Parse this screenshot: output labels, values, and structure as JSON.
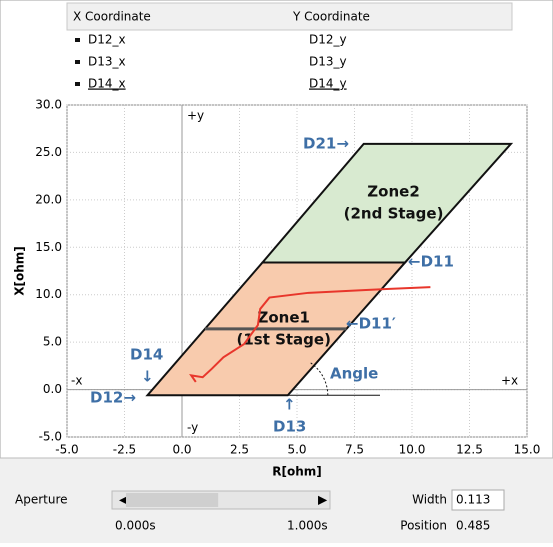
{
  "table": {
    "headers": [
      "X Coordinate",
      "Y Coordinate"
    ],
    "rows": [
      [
        "D12_x",
        "D12_y"
      ],
      [
        "D13_x",
        "D13_y"
      ],
      [
        "D14_x",
        "D14_y"
      ]
    ]
  },
  "chart_data": {
    "type": "line",
    "x_label": "R[ohm]",
    "y_label": "X[ohm]",
    "xlim": [
      -5,
      15
    ],
    "ylim": [
      -5,
      30
    ],
    "xticks": [
      {
        "value": -5,
        "label": "-5.0"
      },
      {
        "value": -2.5,
        "label": "-2.5"
      },
      {
        "value": 0,
        "label": "0.0"
      },
      {
        "value": 2.5,
        "label": "2.5"
      },
      {
        "value": 5,
        "label": "5.0"
      },
      {
        "value": 7.5,
        "label": "7.5"
      },
      {
        "value": 10,
        "label": "10.0"
      },
      {
        "value": 12.5,
        "label": "12.5"
      },
      {
        "value": 15,
        "label": "15.0"
      }
    ],
    "yticks": [
      {
        "value": -5,
        "label": "-5.0"
      },
      {
        "value": 0,
        "label": "0.0"
      },
      {
        "value": 5,
        "label": "5.0"
      },
      {
        "value": 10,
        "label": "10.0"
      },
      {
        "value": 15,
        "label": "15.0"
      },
      {
        "value": 20,
        "label": "20.0"
      },
      {
        "value": 25,
        "label": "25.0"
      },
      {
        "value": 30,
        "label": "30.0"
      }
    ],
    "grid": true,
    "zones": [
      {
        "name": [
          "Zone2",
          "(2nd Stage)"
        ],
        "color": "#d8ead0",
        "x": [
          3.5,
          9.7,
          14.3,
          7.9
        ],
        "y": [
          13.4,
          13.4,
          25.9,
          25.9
        ]
      },
      {
        "name": [
          "Zone1",
          "(1st Stage)"
        ],
        "color": "#f8cbad",
        "x": [
          -1.5,
          4.6,
          9.7,
          3.5
        ],
        "y": [
          -0.6,
          -0.6,
          13.4,
          13.4
        ]
      }
    ],
    "series": [
      {
        "color": "#e8362b",
        "x": [
          0.6,
          0.4,
          0.9,
          1.3,
          1.8,
          2.7,
          3.3,
          3.4,
          3.8,
          5.5,
          8,
          10.8
        ],
        "y": [
          0.8,
          1.5,
          1.3,
          2.2,
          3.4,
          4.8,
          6.8,
          8.5,
          9.7,
          10.2,
          10.5,
          10.8
        ]
      }
    ],
    "axis_marks": [
      "+y",
      "-y",
      "-x",
      "+x"
    ],
    "annotations": [
      "D21→",
      "←D11",
      "←D11′",
      "D14",
      "D12→",
      "D13",
      "Angle"
    ]
  },
  "controls": {
    "aperture_label": "Aperture",
    "start": "0.000s",
    "end": "1.000s",
    "width_label": "Width",
    "width": 0.113,
    "position_label": "Position",
    "position": 0.485
  }
}
